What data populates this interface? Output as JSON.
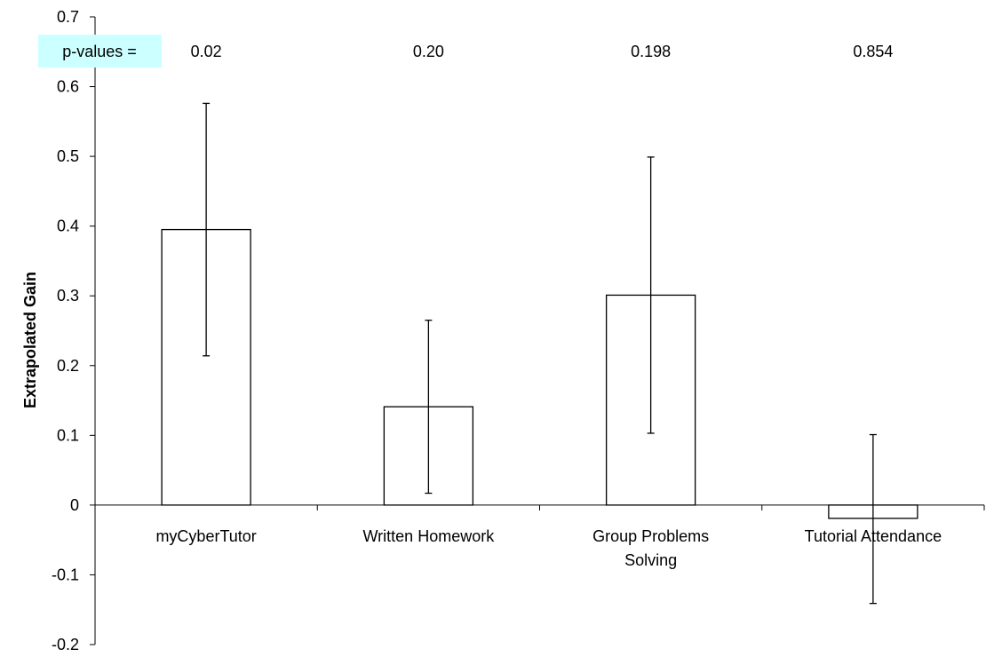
{
  "chart_data": {
    "type": "bar",
    "title": "",
    "xlabel": "",
    "ylabel": "Extrapolated Gain",
    "ylim": [
      -0.2,
      0.7
    ],
    "yticks": [
      "0.7",
      "0.6",
      "0.5",
      "0.4",
      "0.3",
      "0.2",
      "0.1",
      "0",
      "-0.1",
      "-0.2"
    ],
    "categories": [
      [
        "myCyberTutor"
      ],
      [
        "Written Homework"
      ],
      [
        "Group Problems",
        "Solving"
      ],
      [
        "Tutorial Attendance"
      ]
    ],
    "values": [
      0.395,
      0.141,
      0.301,
      -0.019
    ],
    "error_upper": [
      0.576,
      0.265,
      0.499,
      0.101
    ],
    "error_lower": [
      0.214,
      0.017,
      0.103,
      -0.141
    ],
    "pvalue_label": "p-values =",
    "pvalues": [
      "0.02",
      "0.20",
      "0.198",
      "0.854"
    ],
    "grid": false,
    "legend": "none",
    "colors": {
      "bar_fill": "#ffffff",
      "bar_stroke": "#000000",
      "pvalue_box": "#ccffff"
    }
  }
}
